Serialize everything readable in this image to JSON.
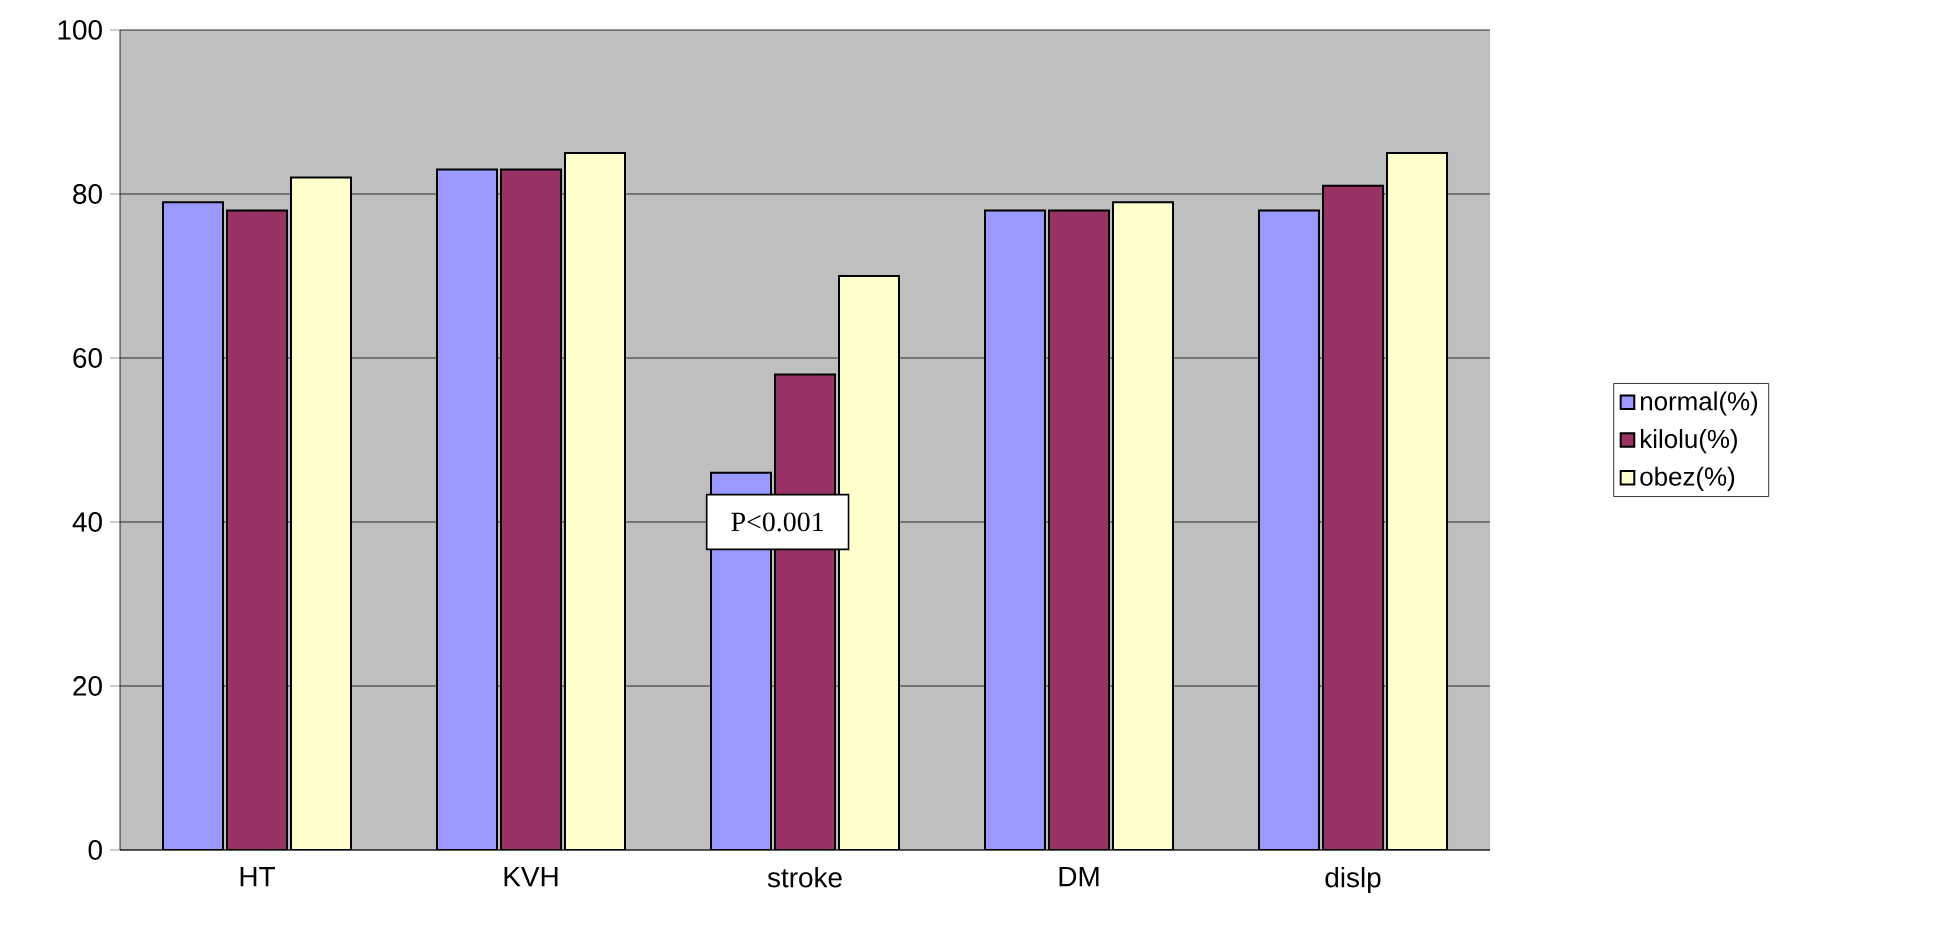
{
  "chart_data": {
    "type": "bar",
    "categories": [
      "HT",
      "KVH",
      "stroke",
      "DM",
      "dislp"
    ],
    "series": [
      {
        "name": "normal(%)",
        "color": "#9999ff",
        "values": [
          79,
          83,
          46,
          78,
          78
        ]
      },
      {
        "name": "kilolu(%)",
        "color": "#993366",
        "values": [
          78,
          83,
          58,
          78,
          81
        ]
      },
      {
        "name": "obez(%)",
        "color": "#ffffcc",
        "values": [
          82,
          85,
          70,
          79,
          85
        ]
      }
    ],
    "ylim": [
      0,
      100
    ],
    "yticks": [
      0,
      20,
      40,
      60,
      80,
      100
    ],
    "grid": "y",
    "legend": "right",
    "annotations": [
      "P<0.001"
    ]
  }
}
